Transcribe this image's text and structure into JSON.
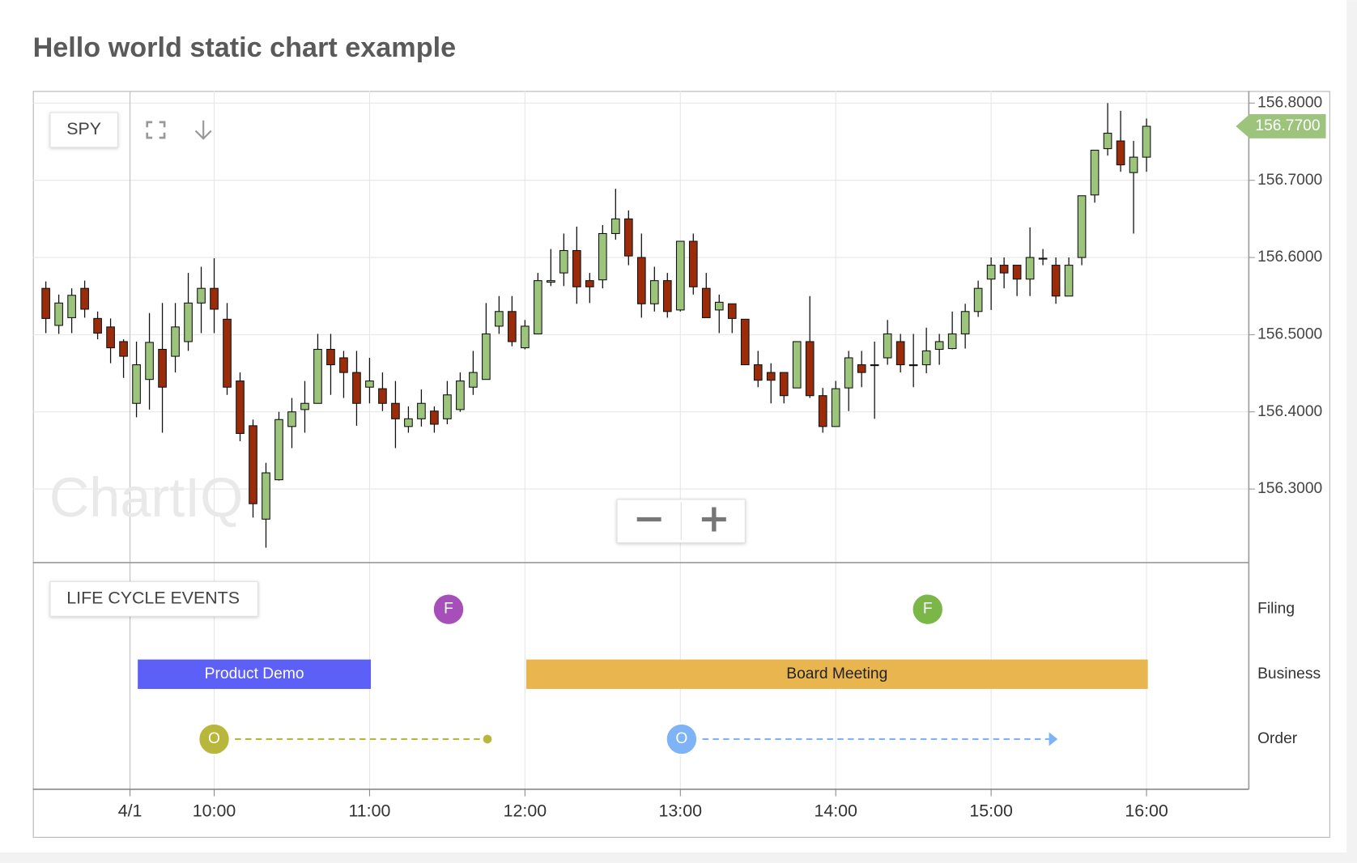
{
  "title": "Hello world static chart example",
  "chart_data": {
    "type": "candlestick",
    "symbol": "SPY",
    "watermark": "ChartIQ",
    "up_color": "#9cc47c",
    "down_color": "#9b2c0b",
    "grid": true,
    "xlim": [
      -1,
      92.9
    ],
    "xticks": [
      {
        "value": 6.5,
        "label": "4/1"
      },
      {
        "value": 13,
        "label": "10:00"
      },
      {
        "value": 25,
        "label": "11:00"
      },
      {
        "value": 37,
        "label": "12:00"
      },
      {
        "value": 49,
        "label": "13:00"
      },
      {
        "value": 61,
        "label": "14:00"
      },
      {
        "value": 73,
        "label": "15:00"
      },
      {
        "value": 85,
        "label": "16:00"
      }
    ],
    "ylim": [
      156.2047,
      156.8157
    ],
    "yticks": [
      {
        "value": 156.3,
        "label": "156.3000"
      },
      {
        "value": 156.4,
        "label": "156.4000"
      },
      {
        "value": 156.5,
        "label": "156.5000"
      },
      {
        "value": 156.6,
        "label": "156.6000"
      },
      {
        "value": 156.7,
        "label": "156.7000"
      },
      {
        "value": 156.8,
        "label": "156.8000"
      }
    ],
    "last_price": {
      "value": 156.77,
      "label": "156.7700"
    },
    "open": [
      156.56,
      156.512,
      156.522,
      156.56,
      156.521,
      156.51,
      156.491,
      156.411,
      156.442,
      156.481,
      156.472,
      156.491,
      156.541,
      156.56,
      156.52,
      156.44,
      156.382,
      156.261,
      156.312,
      156.381,
      156.403,
      156.411,
      156.481,
      156.47,
      156.451,
      156.432,
      156.43,
      156.411,
      156.381,
      156.391,
      156.401,
      156.391,
      156.403,
      156.432,
      156.442,
      156.511,
      156.53,
      156.483,
      156.501,
      156.568,
      156.58,
      156.609,
      156.57,
      156.571,
      156.631,
      156.65,
      156.6,
      156.54,
      156.57,
      156.532,
      156.621,
      156.56,
      156.532,
      156.54,
      156.52,
      156.461,
      156.451,
      156.451,
      156.431,
      156.491,
      156.421,
      156.381,
      156.431,
      156.461,
      156.46,
      156.47,
      156.491,
      156.46,
      156.461,
      156.481,
      156.482,
      156.501,
      156.53,
      156.572,
      156.59,
      156.59,
      156.572,
      156.598,
      156.59,
      156.55,
      156.6,
      156.681,
      156.741,
      156.751,
      156.71,
      156.73
    ],
    "high": [
      156.569,
      156.552,
      156.56,
      156.57,
      156.53,
      156.521,
      156.494,
      156.491,
      156.528,
      156.541,
      156.541,
      156.58,
      156.588,
      156.599,
      156.541,
      156.451,
      156.39,
      156.334,
      156.4,
      156.418,
      156.44,
      156.501,
      156.501,
      156.479,
      156.479,
      156.47,
      156.451,
      156.44,
      156.407,
      156.429,
      156.407,
      156.44,
      156.451,
      156.479,
      156.541,
      156.55,
      156.55,
      156.519,
      156.58,
      156.611,
      156.631,
      156.64,
      156.58,
      156.642,
      156.689,
      156.661,
      156.631,
      156.588,
      156.58,
      156.621,
      156.631,
      156.58,
      156.552,
      156.54,
      156.52,
      156.479,
      156.463,
      156.451,
      156.491,
      156.55,
      156.431,
      156.44,
      156.479,
      156.479,
      156.491,
      156.519,
      156.501,
      156.501,
      156.509,
      156.501,
      156.53,
      156.54,
      156.57,
      156.6,
      156.6,
      156.59,
      156.639,
      156.611,
      156.6,
      156.6,
      156.68,
      156.739,
      156.8,
      156.79,
      156.751,
      156.78
    ],
    "low": [
      156.502,
      156.501,
      156.502,
      156.522,
      156.494,
      156.463,
      156.444,
      156.393,
      156.403,
      156.373,
      156.451,
      156.479,
      156.502,
      156.502,
      156.422,
      156.362,
      156.263,
      156.224,
      156.311,
      156.353,
      156.373,
      156.411,
      156.422,
      156.418,
      156.382,
      156.411,
      156.401,
      156.353,
      156.373,
      156.381,
      156.373,
      156.384,
      156.4,
      156.422,
      156.442,
      156.501,
      156.485,
      156.481,
      156.501,
      156.563,
      156.563,
      156.54,
      156.541,
      156.56,
      156.623,
      156.59,
      156.522,
      156.53,
      156.522,
      156.53,
      156.552,
      156.522,
      156.502,
      156.502,
      156.461,
      156.432,
      156.411,
      156.411,
      156.431,
      156.418,
      156.373,
      156.381,
      156.401,
      156.432,
      156.391,
      156.461,
      156.451,
      156.432,
      156.45,
      156.461,
      156.481,
      156.482,
      156.523,
      156.532,
      156.56,
      156.55,
      156.55,
      156.59,
      156.54,
      156.55,
      156.59,
      156.671,
      156.732,
      156.711,
      156.631,
      156.711
    ],
    "close": [
      156.521,
      156.541,
      156.551,
      156.533,
      156.502,
      156.483,
      156.472,
      156.461,
      156.49,
      156.432,
      156.51,
      156.541,
      156.56,
      156.533,
      156.432,
      156.372,
      156.281,
      156.321,
      156.39,
      156.4,
      156.411,
      156.481,
      156.461,
      156.451,
      156.411,
      156.44,
      156.411,
      156.391,
      156.391,
      156.411,
      156.384,
      156.422,
      156.44,
      156.451,
      156.501,
      156.53,
      156.491,
      156.511,
      156.57,
      156.57,
      156.609,
      156.562,
      156.562,
      156.631,
      156.65,
      156.602,
      156.54,
      156.57,
      156.53,
      156.621,
      156.562,
      156.522,
      156.542,
      156.521,
      156.461,
      156.441,
      156.441,
      156.421,
      156.491,
      156.421,
      156.381,
      156.43,
      156.47,
      156.451,
      156.461,
      156.501,
      156.461,
      156.461,
      156.479,
      156.491,
      156.501,
      156.53,
      156.56,
      156.59,
      156.58,
      156.572,
      156.6,
      156.599,
      156.55,
      156.59,
      156.68,
      156.739,
      156.761,
      156.72,
      156.73,
      156.77
    ],
    "events": {
      "title": "LIFE CYCLE EVENTS",
      "rows": [
        "Filing",
        "Business",
        "Order"
      ],
      "filings": [
        {
          "x": 31.1,
          "label": "F",
          "color": "#a64fb9"
        },
        {
          "x": 68.1,
          "label": "F",
          "color": "#7ab648"
        }
      ],
      "spans": [
        {
          "start": 7.1,
          "end": 25.1,
          "label": "Product Demo",
          "color": "#5d60f6",
          "text_color": "#ffffff"
        },
        {
          "start": 37.1,
          "end": 85.1,
          "label": "Board Meeting",
          "color": "#e9b54f",
          "text_color": "#222222"
        }
      ],
      "orders": [
        {
          "start": 13,
          "end": 34.1,
          "label": "O",
          "color": "#b9b63c",
          "end_marker": "dot"
        },
        {
          "start": 49.1,
          "end": 77.8,
          "label": "O",
          "color": "#7eb4f5",
          "end_marker": "arrow"
        }
      ]
    }
  }
}
